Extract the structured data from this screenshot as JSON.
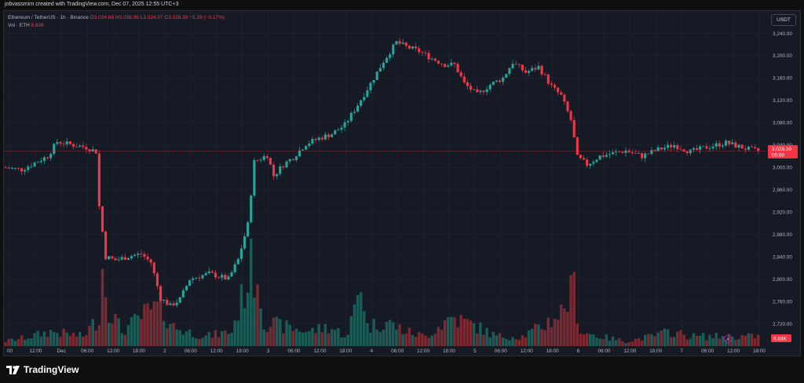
{
  "header": {
    "credit": "jobvassmirn created with TradingView.com, Dec 07, 2025 12:55 UTC+3",
    "symbol": "Ethereum / TetherUS · 1h · Binance",
    "o_label": "O",
    "o_value": "3,034.68",
    "h_label": "H",
    "h_value": "3,038.96",
    "l_label": "L",
    "l_value": "3,024.07",
    "c_label": "C",
    "c_value": "3,029.39",
    "change": "−5.29 (−0.17%)",
    "vol_label": "Vol · ETH",
    "vol_value": "8.83K",
    "currency_button": "USDT"
  },
  "colors": {
    "up": "#26a69a",
    "down": "#f23645",
    "vol_up": "#1c5c57",
    "vol_down": "#7a2a30",
    "grid": "#232632",
    "bg": "#161a25"
  },
  "footer": {
    "brand": "TradingView"
  },
  "chart_data": {
    "type": "candlestick",
    "y_ticks": [
      "2,720.00",
      "2,760.00",
      "2,800.00",
      "2,840.00",
      "2,880.00",
      "2,920.00",
      "2,960.00",
      "3,000.00",
      "3,040.00",
      "3,080.00",
      "3,120.00",
      "3,160.00",
      "3,200.00",
      "3,240.00"
    ],
    "ylim": [
      2680,
      3280
    ],
    "x_ticks": [
      "00",
      "12:00",
      "Dec",
      "06:00",
      "12:00",
      "18:00",
      "2",
      "06:00",
      "12:00",
      "18:00",
      "3",
      "06:00",
      "12:00",
      "18:00",
      "4",
      "06:00",
      "12:00",
      "18:00",
      "5",
      "06:00",
      "12:00",
      "18:00",
      "6",
      "06:00",
      "12:00",
      "18:00",
      "7",
      "06:00",
      "12:00",
      "18:00"
    ],
    "last_price": "3,029.39",
    "countdown": "05:00",
    "last_volume": "8.83K",
    "anchors": [
      [
        0,
        3000
      ],
      [
        6,
        2996
      ],
      [
        10,
        3008
      ],
      [
        14,
        3020
      ],
      [
        17,
        3046
      ],
      [
        22,
        3040
      ],
      [
        26,
        3036
      ],
      [
        29,
        3028
      ],
      [
        30,
        2930
      ],
      [
        32,
        2840
      ],
      [
        35,
        2834
      ],
      [
        40,
        2842
      ],
      [
        43,
        2845
      ],
      [
        46,
        2830
      ],
      [
        49,
        2766
      ],
      [
        52,
        2752
      ],
      [
        55,
        2764
      ],
      [
        58,
        2800
      ],
      [
        64,
        2810
      ],
      [
        70,
        2800
      ],
      [
        73,
        2835
      ],
      [
        76,
        2898
      ],
      [
        78,
        3010
      ],
      [
        82,
        3022
      ],
      [
        84,
        2985
      ],
      [
        87,
        3005
      ],
      [
        90,
        3018
      ],
      [
        94,
        3042
      ],
      [
        98,
        3052
      ],
      [
        102,
        3060
      ],
      [
        106,
        3076
      ],
      [
        110,
        3112
      ],
      [
        114,
        3150
      ],
      [
        118,
        3190
      ],
      [
        122,
        3224
      ],
      [
        125,
        3216
      ],
      [
        129,
        3208
      ],
      [
        133,
        3195
      ],
      [
        137,
        3184
      ],
      [
        140,
        3184
      ],
      [
        143,
        3150
      ],
      [
        147,
        3130
      ],
      [
        151,
        3148
      ],
      [
        155,
        3160
      ],
      [
        158,
        3188
      ],
      [
        162,
        3170
      ],
      [
        166,
        3180
      ],
      [
        170,
        3145
      ],
      [
        173,
        3128
      ],
      [
        176,
        3085
      ],
      [
        178,
        3018
      ],
      [
        181,
        3005
      ],
      [
        185,
        3020
      ],
      [
        189,
        3025
      ],
      [
        193,
        3030
      ],
      [
        198,
        3020
      ],
      [
        203,
        3032
      ],
      [
        208,
        3040
      ],
      [
        213,
        3028
      ],
      [
        218,
        3036
      ],
      [
        224,
        3044
      ],
      [
        230,
        3034
      ],
      [
        233,
        3030
      ]
    ],
    "volume_anchors": [
      [
        0,
        1
      ],
      [
        8,
        2
      ],
      [
        14,
        3
      ],
      [
        24,
        2
      ],
      [
        29,
        6
      ],
      [
        30,
        16
      ],
      [
        32,
        8
      ],
      [
        36,
        3
      ],
      [
        40,
        5
      ],
      [
        44,
        7
      ],
      [
        48,
        8
      ],
      [
        52,
        4
      ],
      [
        56,
        3
      ],
      [
        62,
        2
      ],
      [
        70,
        3
      ],
      [
        76,
        16
      ],
      [
        78,
        15
      ],
      [
        80,
        5
      ],
      [
        86,
        4
      ],
      [
        94,
        3
      ],
      [
        100,
        4
      ],
      [
        106,
        2
      ],
      [
        110,
        14
      ],
      [
        112,
        4
      ],
      [
        118,
        5
      ],
      [
        124,
        3
      ],
      [
        130,
        2
      ],
      [
        138,
        6
      ],
      [
        142,
        5
      ],
      [
        146,
        4
      ],
      [
        152,
        2
      ],
      [
        160,
        2
      ],
      [
        166,
        4
      ],
      [
        172,
        7
      ],
      [
        176,
        12
      ],
      [
        178,
        3
      ],
      [
        184,
        2
      ],
      [
        192,
        1
      ],
      [
        200,
        2
      ],
      [
        206,
        3
      ],
      [
        212,
        2
      ],
      [
        220,
        2
      ],
      [
        226,
        2
      ],
      [
        233,
        2
      ]
    ],
    "last_candle_index": 233
  }
}
